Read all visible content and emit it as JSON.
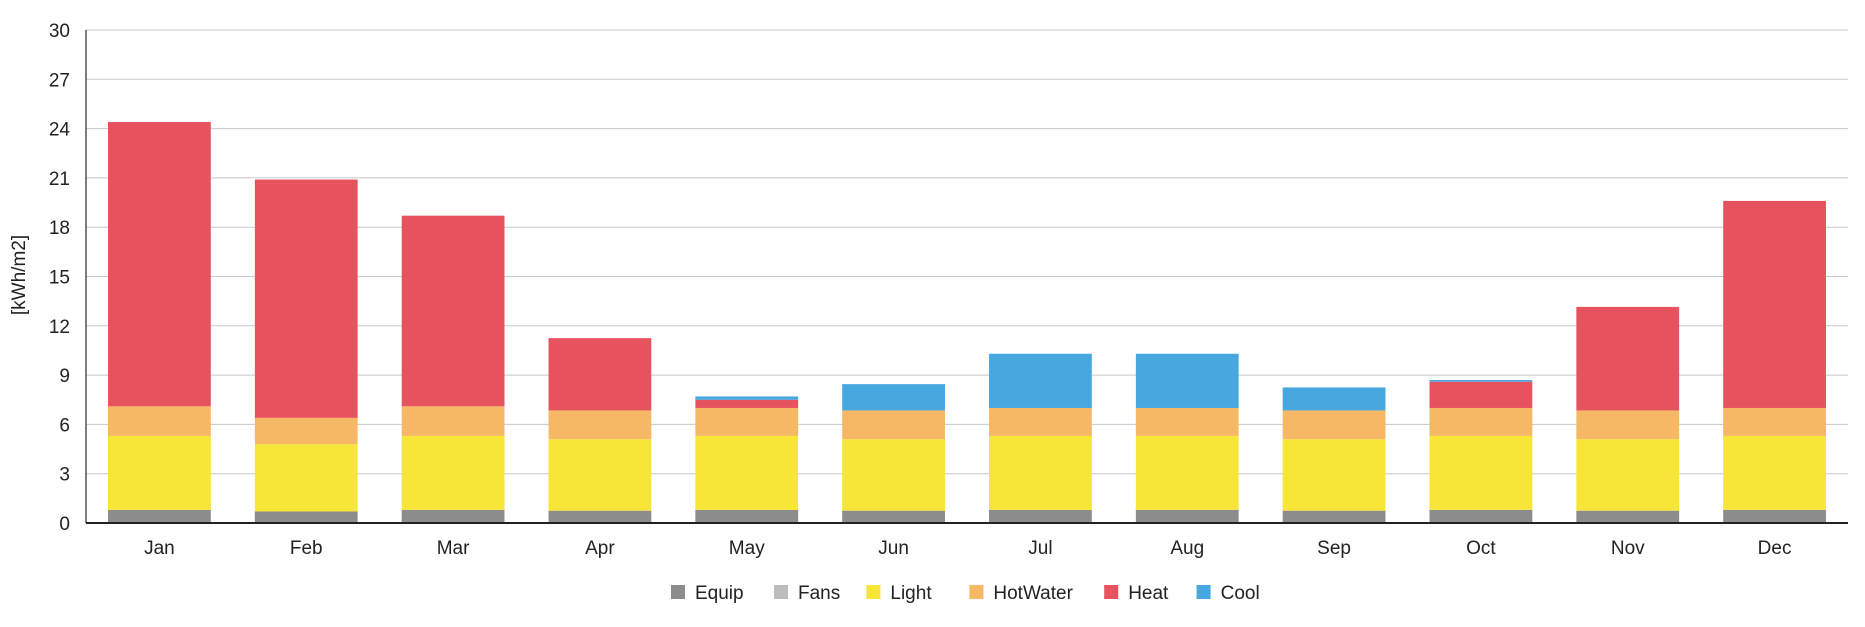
{
  "chart_data": {
    "type": "bar",
    "stacked": true,
    "title": "",
    "xlabel": "",
    "ylabel": "[kWh/m2]",
    "ylim": [
      0,
      30
    ],
    "yticks": [
      0,
      3,
      6,
      9,
      12,
      15,
      18,
      21,
      24,
      27,
      30
    ],
    "grid": true,
    "legend_position": "bottom-center",
    "categories": [
      "Jan",
      "Feb",
      "Mar",
      "Apr",
      "May",
      "Jun",
      "Jul",
      "Aug",
      "Sep",
      "Oct",
      "Nov",
      "Dec"
    ],
    "series": [
      {
        "name": "Equip",
        "color": "#8c8c8c",
        "values": [
          0.8,
          0.7,
          0.8,
          0.75,
          0.8,
          0.75,
          0.8,
          0.8,
          0.75,
          0.8,
          0.75,
          0.8
        ]
      },
      {
        "name": "Fans",
        "color": "#bdbdbd",
        "values": [
          0.0,
          0.0,
          0.0,
          0.0,
          0.0,
          0.0,
          0.0,
          0.0,
          0.0,
          0.0,
          0.0,
          0.0
        ]
      },
      {
        "name": "Light",
        "color": "#f7e537",
        "values": [
          4.5,
          4.1,
          4.5,
          4.35,
          4.5,
          4.35,
          4.5,
          4.5,
          4.35,
          4.5,
          4.35,
          4.5
        ]
      },
      {
        "name": "HotWater",
        "color": "#f7b865",
        "values": [
          1.8,
          1.6,
          1.8,
          1.75,
          1.7,
          1.75,
          1.7,
          1.7,
          1.75,
          1.7,
          1.75,
          1.7
        ]
      },
      {
        "name": "Heat",
        "color": "#e6535f",
        "values": [
          17.3,
          14.5,
          11.6,
          4.4,
          0.5,
          0.0,
          0.0,
          0.0,
          0.0,
          1.6,
          6.3,
          12.6
        ]
      },
      {
        "name": "Cool",
        "color": "#47a7df",
        "values": [
          0.0,
          0.0,
          0.0,
          0.0,
          0.2,
          1.6,
          3.3,
          3.3,
          1.4,
          0.1,
          0.0,
          0.0
        ]
      }
    ]
  }
}
